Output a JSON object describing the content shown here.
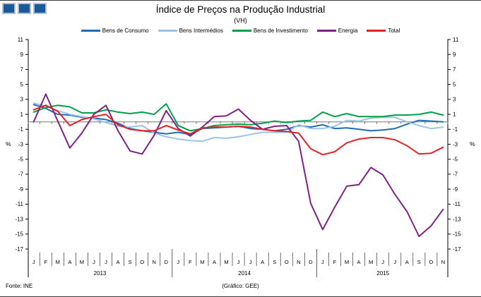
{
  "header": {
    "title": "Índice de Preços na Produção Industrial",
    "subtitle": "(VH)"
  },
  "logo": {
    "description": "three-blue-squares",
    "fill": "#1a5a9a",
    "border": "#a9c2da",
    "count": 3
  },
  "footer": {
    "source": "Fonte: INE",
    "credit": "(Gráfico: GEE)"
  },
  "chart_data": {
    "type": "line",
    "title": "Índice de Preços na Produção Industrial",
    "subtitle": "(VH)",
    "ylabel_left": "%",
    "ylabel_right": "%",
    "ylim": [
      -17,
      11
    ],
    "yticks": [
      11,
      9,
      7,
      5,
      3,
      1,
      -1,
      -3,
      -5,
      -7,
      -9,
      -11,
      -13,
      -15,
      -17
    ],
    "grid": false,
    "legend_position": "top",
    "zero_axis_color": "#9b9b9b",
    "x_months": [
      "J",
      "F",
      "M",
      "A",
      "M",
      "J",
      "J",
      "A",
      "S",
      "O",
      "N",
      "D",
      "J",
      "F",
      "M",
      "A",
      "M",
      "J",
      "J",
      "A",
      "S",
      "O",
      "N",
      "D",
      "J",
      "F",
      "M",
      "A",
      "M",
      "J",
      "J",
      "A",
      "S",
      "O",
      "N"
    ],
    "year_groups": [
      {
        "label": "2013",
        "months": 12
      },
      {
        "label": "2014",
        "months": 12
      },
      {
        "label": "2015",
        "months": 11
      }
    ],
    "series": [
      {
        "name": "Bens de Consumo",
        "color": "#1f6db6",
        "values": [
          2.3,
          1.8,
          1.0,
          0.9,
          0.6,
          0.5,
          0.3,
          -0.2,
          -0.9,
          -1.2,
          -1.4,
          -1.6,
          -1.4,
          -1.7,
          -0.9,
          -0.8,
          -0.7,
          -0.6,
          -0.9,
          -1.0,
          -1.2,
          -1.0,
          -0.5,
          -0.7,
          -0.4,
          -0.9,
          -0.8,
          -1.0,
          -1.2,
          -1.1,
          -0.9,
          -0.3,
          0.2,
          0.1,
          0.0
        ]
      },
      {
        "name": "Bens Intermédios",
        "color": "#9dc3e6",
        "values": [
          2.5,
          2.1,
          1.5,
          1.0,
          0.7,
          0.4,
          -0.1,
          -0.6,
          -0.7,
          -0.5,
          -1.5,
          -2.0,
          -2.3,
          -2.5,
          -2.6,
          -2.1,
          -2.2,
          -2.0,
          -1.7,
          -1.4,
          -1.4,
          -1.4,
          -0.4,
          -0.9,
          -0.9,
          -0.6,
          0.2,
          0.1,
          0.5,
          0.6,
          0.6,
          0.0,
          -0.5,
          -0.9,
          -0.7
        ]
      },
      {
        "name": "Bens de Investimento",
        "color": "#009f4c",
        "values": [
          1.3,
          1.9,
          2.2,
          2.0,
          1.2,
          1.2,
          1.6,
          1.3,
          1.1,
          1.3,
          1.0,
          2.4,
          -0.5,
          -1.2,
          -0.9,
          -0.5,
          -0.4,
          -0.3,
          -0.4,
          -0.2,
          0.1,
          -0.1,
          0.1,
          0.2,
          1.3,
          0.7,
          1.1,
          0.7,
          0.7,
          0.7,
          0.9,
          0.9,
          1.0,
          1.3,
          0.9
        ]
      },
      {
        "name": "Energia",
        "color": "#7e2285",
        "values": [
          0.0,
          3.7,
          0.1,
          -3.5,
          -1.5,
          1.0,
          2.2,
          -1.2,
          -3.9,
          -4.3,
          -1.8,
          1.5,
          -0.9,
          -1.9,
          -0.7,
          0.7,
          0.8,
          1.7,
          0.2,
          -1.0,
          -0.6,
          -0.5,
          -2.6,
          -10.9,
          -14.4,
          -11.4,
          -8.6,
          -8.4,
          -6.1,
          -7.1,
          -9.7,
          -12.0,
          -15.3,
          -13.9,
          -11.7
        ]
      },
      {
        "name": "Total",
        "color": "#e02424",
        "values": [
          1.6,
          2.2,
          1.4,
          -0.5,
          0.3,
          0.7,
          1.0,
          -0.4,
          -1.0,
          -1.2,
          -1.2,
          -0.5,
          -1.1,
          -1.6,
          -0.8,
          -0.7,
          -0.7,
          -0.6,
          -0.7,
          -1.0,
          -1.2,
          -1.3,
          -1.5,
          -3.6,
          -4.4,
          -4.0,
          -2.8,
          -2.3,
          -2.1,
          -2.1,
          -2.4,
          -3.2,
          -4.3,
          -4.2,
          -3.4
        ]
      }
    ]
  }
}
